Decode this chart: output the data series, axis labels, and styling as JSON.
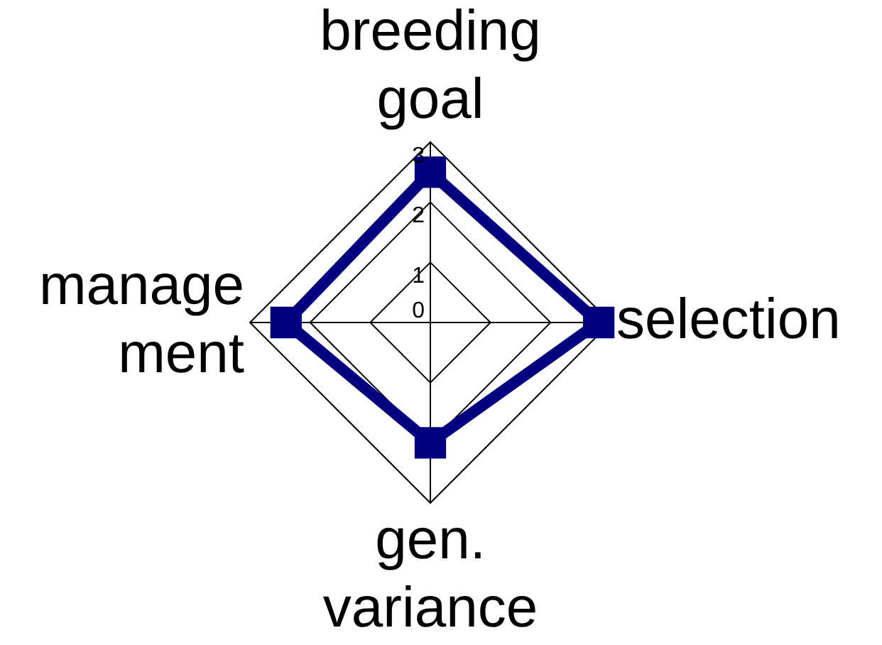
{
  "chart_data": {
    "type": "radar",
    "categories": [
      "breeding\ngoal",
      "selection",
      "gen.\nvariance",
      "manage\nment"
    ],
    "series": [
      {
        "color": "#000080",
        "values": [
          2.5,
          2.8,
          2.0,
          2.4
        ]
      }
    ],
    "ylim": [
      0,
      3
    ],
    "yticks": [
      0,
      1,
      2,
      3
    ],
    "grid": true,
    "legend": false,
    "marker": "square"
  }
}
